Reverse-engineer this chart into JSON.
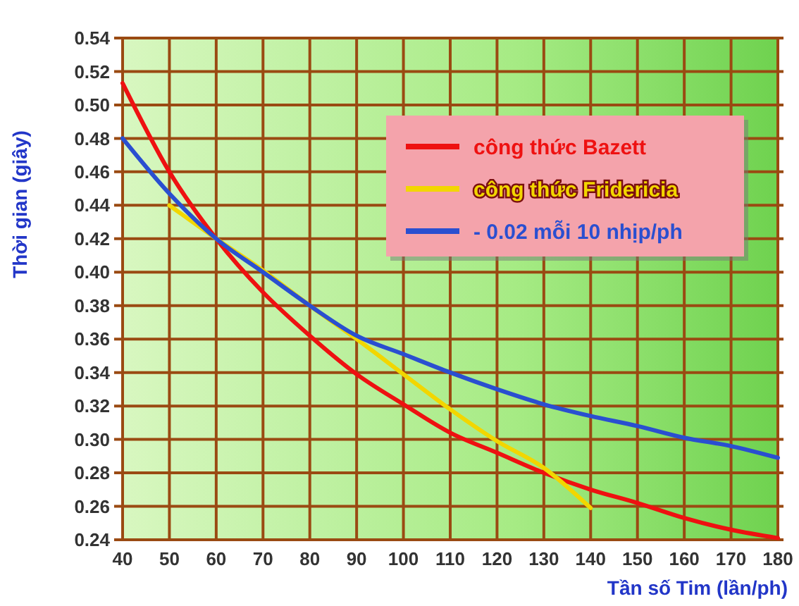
{
  "chart_data": {
    "type": "line",
    "xlabel": "Tần số Tim (lần/ph)",
    "ylabel": "Thời gian (giây)",
    "xlim": [
      40,
      180
    ],
    "xticks": [
      40,
      50,
      60,
      70,
      80,
      90,
      100,
      110,
      120,
      130,
      140,
      150,
      160,
      170,
      180
    ],
    "ylim": [
      0.24,
      0.54
    ],
    "yticks": [
      0.24,
      0.26,
      0.28,
      {
        "value": 0.3,
        "label": "0.30"
      },
      0.32,
      0.34,
      0.36,
      0.38,
      {
        "value": 0.4,
        "label": "0.40"
      },
      0.42,
      0.44,
      0.46,
      0.48,
      {
        "value": 0.5,
        "label": "0.50"
      },
      0.52,
      0.54
    ],
    "grid": true,
    "legend": "top right",
    "marker": "none",
    "line_style": "solid",
    "series": [
      {
        "name": "công thức Bazett",
        "color": "#ee1111",
        "x": [
          40,
          50,
          60,
          70,
          80,
          90,
          100,
          110,
          120,
          130,
          140,
          150,
          160,
          170,
          180
        ],
        "values": [
          0.513,
          0.46,
          0.42,
          0.388,
          0.362,
          0.339,
          0.321,
          0.304,
          0.292,
          0.28,
          0.27,
          0.262,
          0.253,
          0.246,
          0.241
        ]
      },
      {
        "name": "công thức Fridericia",
        "color": "#f2d600",
        "x": [
          50,
          60,
          70,
          80,
          90,
          100,
          110,
          120,
          130,
          140
        ],
        "values": [
          0.44,
          0.42,
          0.401,
          0.38,
          0.36,
          0.339,
          0.318,
          0.299,
          0.283,
          0.259
        ]
      },
      {
        "name": "- 0.02 mỗi 10 nhịp/ph",
        "color": "#2a4fd0",
        "x": [
          40,
          50,
          60,
          70,
          80,
          90,
          100,
          110,
          120,
          130,
          140,
          150,
          160,
          170,
          180
        ],
        "values": [
          0.48,
          0.447,
          0.42,
          0.4,
          0.38,
          0.362,
          0.351,
          0.34,
          0.33,
          0.321,
          0.314,
          0.308,
          0.301,
          0.296,
          0.289
        ]
      }
    ]
  }
}
